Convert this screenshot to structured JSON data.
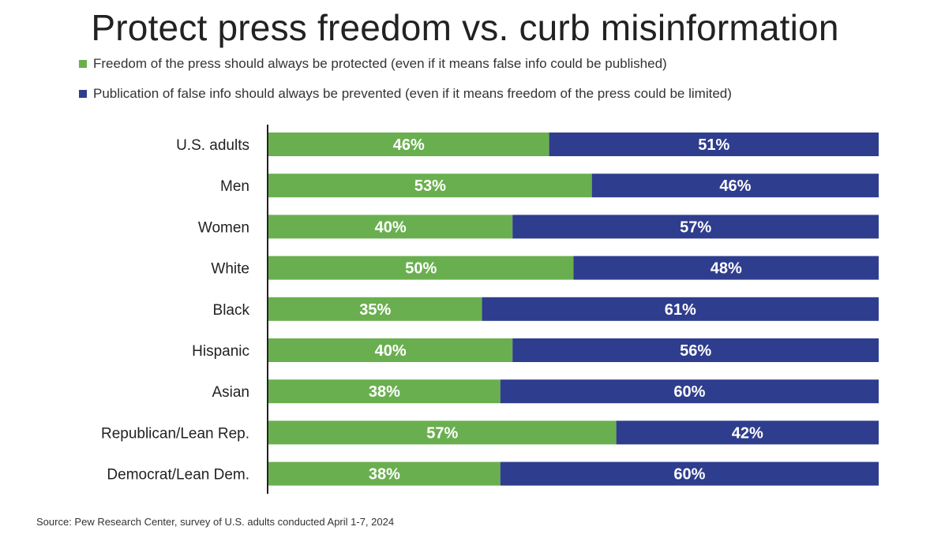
{
  "colors": {
    "protect": "#6aaf4f",
    "prevent": "#2f3d8e",
    "axis": "#222222",
    "bar_text": "#ffffff"
  },
  "source": "Source: Pew Research Center, survey of U.S. adults conducted April 1-7, 2024",
  "chart_data": {
    "type": "bar",
    "orientation": "horizontal",
    "stacked": true,
    "title": "Protect press freedom vs. curb misinformation",
    "categories": [
      "U.S. adults",
      "Men",
      "Women",
      "White",
      "Black",
      "Hispanic",
      "Asian",
      "Republican/Lean Rep.",
      "Democrat/Lean Dem."
    ],
    "series": [
      {
        "name": "Freedom of the press should always be protected (even if it means false info could be published)",
        "values": [
          46,
          53,
          40,
          50,
          35,
          40,
          38,
          57,
          38
        ]
      },
      {
        "name": "Publication of false info should always be prevented (even if it means freedom of the press could be limited)",
        "values": [
          51,
          46,
          57,
          48,
          61,
          56,
          60,
          42,
          60
        ]
      }
    ],
    "value_labels": {
      "protect": [
        "46%",
        "53%",
        "40%",
        "50%",
        "35%",
        "40%",
        "38%",
        "57%",
        "38%"
      ],
      "prevent": [
        "51%",
        "46%",
        "57%",
        "48%",
        "61%",
        "56%",
        "60%",
        "42%",
        "60%"
      ]
    },
    "xlim": [
      0,
      100
    ],
    "legend_position": "top-left",
    "grid": false
  }
}
